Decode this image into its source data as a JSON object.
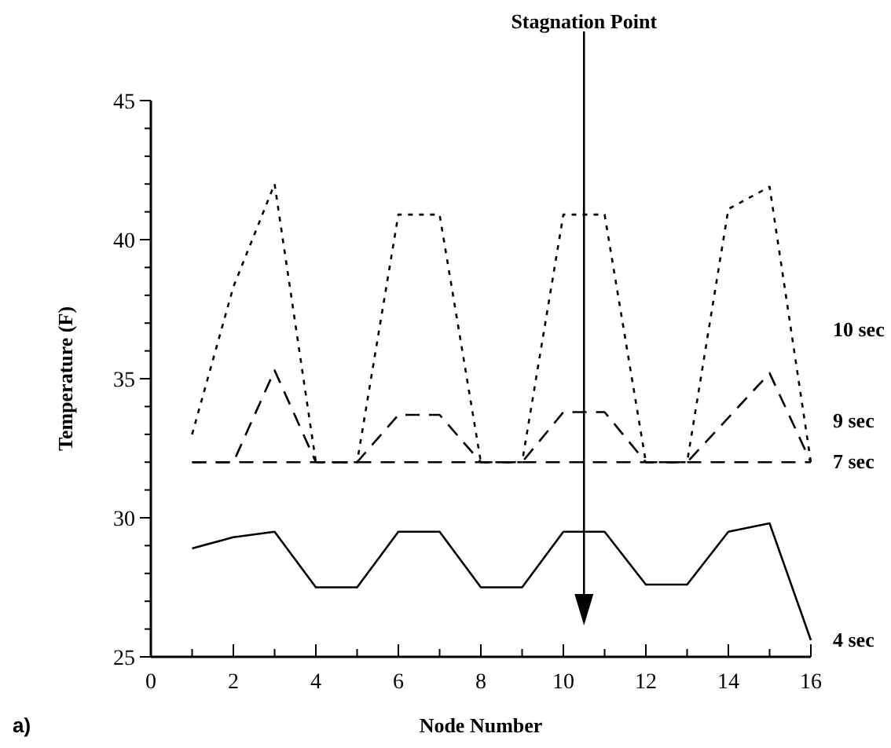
{
  "chart_data": {
    "type": "line",
    "xlabel": "Node Number",
    "ylabel": "Temperature (F)",
    "x": [
      1,
      2,
      3,
      4,
      5,
      6,
      7,
      8,
      9,
      10,
      11,
      12,
      13,
      14,
      15,
      16
    ],
    "series": [
      {
        "name": "10 sec",
        "color": "#000000",
        "line_style": "dotted",
        "values": [
          33,
          38.3,
          42,
          32,
          32,
          40.9,
          40.9,
          32,
          32,
          40.9,
          40.9,
          32,
          32,
          41.1,
          41.9,
          32
        ]
      },
      {
        "name": "9 sec",
        "color": "#000000",
        "line_style": "dashed",
        "values": [
          32,
          32,
          35.3,
          32,
          32,
          33.7,
          33.7,
          32,
          32,
          33.8,
          33.8,
          32,
          32,
          33.6,
          35.2,
          32
        ]
      },
      {
        "name": "7 sec",
        "color": "#000000",
        "line_style": "dashed",
        "values": [
          32,
          32,
          32,
          32,
          32,
          32,
          32,
          32,
          32,
          32,
          32,
          32,
          32,
          32,
          32,
          32
        ]
      },
      {
        "name": "4 sec",
        "color": "#000000",
        "line_style": "solid",
        "values": [
          28.9,
          29.3,
          29.5,
          27.5,
          27.5,
          29.5,
          29.5,
          27.5,
          27.5,
          29.5,
          29.5,
          27.6,
          27.6,
          29.5,
          29.8,
          25.6
        ]
      }
    ],
    "xlim": [
      0,
      16
    ],
    "ylim": [
      25,
      45
    ],
    "xticks": [
      0,
      {
        "value": 1,
        "label": null
      },
      2,
      {
        "value": 3,
        "label": null
      },
      4,
      {
        "value": 5,
        "label": null
      },
      6,
      {
        "value": 7,
        "label": null
      },
      8,
      {
        "value": 9,
        "label": null
      },
      10,
      {
        "value": 11,
        "label": null
      },
      12,
      {
        "value": 13,
        "label": null
      },
      14,
      {
        "value": 15,
        "label": null
      },
      16
    ],
    "yticks": [
      25,
      {
        "value": 26,
        "label": null
      },
      {
        "value": 27,
        "label": null
      },
      {
        "value": 28,
        "label": null
      },
      {
        "value": 29,
        "label": null
      },
      30,
      {
        "value": 31,
        "label": null
      },
      {
        "value": 32,
        "label": null
      },
      {
        "value": 33,
        "label": null
      },
      {
        "value": 34,
        "label": null
      },
      35,
      {
        "value": 36,
        "label": null
      },
      {
        "value": 37,
        "label": null
      },
      {
        "value": 38,
        "label": null
      },
      {
        "value": 39,
        "label": null
      },
      40,
      {
        "value": 41,
        "label": null
      },
      {
        "value": 42,
        "label": null
      },
      {
        "value": 43,
        "label": null
      },
      {
        "value": 44,
        "label": null
      },
      45
    ],
    "ref_lines": [
      {
        "axis": "x",
        "value": 10.5,
        "label": "Stagnation Point",
        "color": "#000000",
        "line_style": "solid"
      }
    ],
    "annotations": [
      "a)"
    ],
    "grid": false,
    "legend": "right",
    "marker": "none"
  }
}
